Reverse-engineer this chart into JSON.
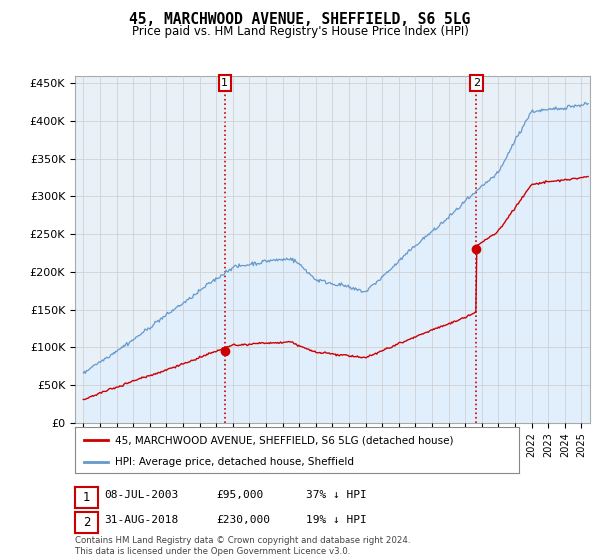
{
  "title": "45, MARCHWOOD AVENUE, SHEFFIELD, S6 5LG",
  "subtitle": "Price paid vs. HM Land Registry's House Price Index (HPI)",
  "legend_label_red": "45, MARCHWOOD AVENUE, SHEFFIELD, S6 5LG (detached house)",
  "legend_label_blue": "HPI: Average price, detached house, Sheffield",
  "annotation1_date": "08-JUL-2003",
  "annotation1_price": "£95,000",
  "annotation1_hpi": "37% ↓ HPI",
  "annotation2_date": "31-AUG-2018",
  "annotation2_price": "£230,000",
  "annotation2_hpi": "19% ↓ HPI",
  "footnote": "Contains HM Land Registry data © Crown copyright and database right 2024.\nThis data is licensed under the Open Government Licence v3.0.",
  "ylim": [
    0,
    460000
  ],
  "yticks": [
    0,
    50000,
    100000,
    150000,
    200000,
    250000,
    300000,
    350000,
    400000,
    450000
  ],
  "ytick_labels": [
    "£0",
    "£50K",
    "£100K",
    "£150K",
    "£200K",
    "£250K",
    "£300K",
    "£350K",
    "£400K",
    "£450K"
  ],
  "sale1_year": 2003.52,
  "sale1_price": 95000,
  "sale2_year": 2018.66,
  "sale2_price": 230000,
  "red_color": "#cc0000",
  "blue_color": "#6699cc",
  "blue_fill_color": "#ddeeff",
  "vline_color": "#cc0000",
  "background_color": "#ffffff",
  "grid_color": "#cccccc",
  "xlim_left": 1994.5,
  "xlim_right": 2025.5
}
